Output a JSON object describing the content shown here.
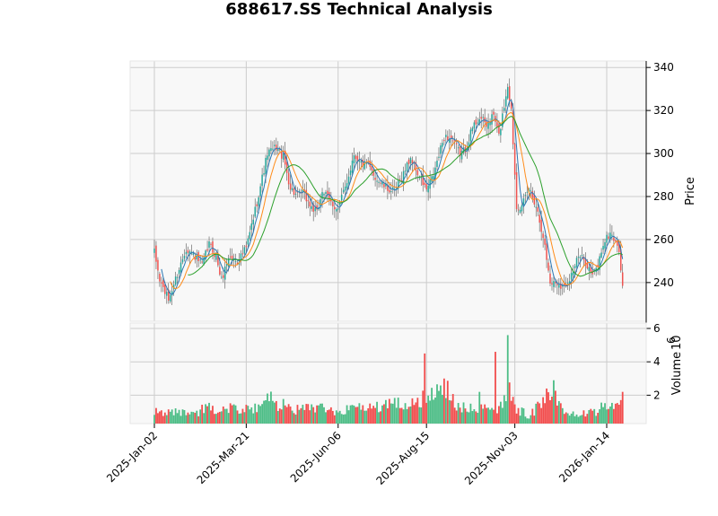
{
  "chart_data": {
    "title": "688617.SS Technical Analysis",
    "type": "candlestick",
    "price_axis": {
      "label": "Price",
      "ticks": [
        240,
        260,
        280,
        300,
        320,
        340
      ],
      "ylim": [
        222,
        343
      ]
    },
    "volume_axis": {
      "label": "Volume",
      "exponent_label": "10",
      "exponent": "6",
      "ticks": [
        2,
        4,
        6
      ],
      "ylim": [
        0.3,
        6.0
      ]
    },
    "x_ticks": [
      "2025-Jan-02",
      "2025-Mar-21",
      "2025-Jun-06",
      "2025-Aug-15",
      "2025-Nov-03",
      "2026-Jan-14"
    ],
    "x_tick_index": [
      0,
      52,
      104,
      154,
      204,
      256
    ],
    "n_bars": 266,
    "grid": true,
    "up_color": "#26a69a",
    "down_color": "#ef5350",
    "volume_up_color": "#4cbd86",
    "volume_down_color": "#f24d4d",
    "ma_fast_color": "#2a77b4",
    "ma_mid_color": "#ff8c1a",
    "ma_slow_color": "#2ca02c",
    "close_keypoints": [
      [
        0,
        254
      ],
      [
        3,
        241
      ],
      [
        8,
        232
      ],
      [
        13,
        244
      ],
      [
        18,
        256
      ],
      [
        22,
        253
      ],
      [
        27,
        248
      ],
      [
        31,
        258
      ],
      [
        35,
        252
      ],
      [
        38,
        241
      ],
      [
        42,
        252
      ],
      [
        47,
        250
      ],
      [
        52,
        256
      ],
      [
        56,
        270
      ],
      [
        60,
        285
      ],
      [
        64,
        300
      ],
      [
        69,
        303
      ],
      [
        73,
        298
      ],
      [
        77,
        284
      ],
      [
        81,
        280
      ],
      [
        84,
        282
      ],
      [
        88,
        276
      ],
      [
        92,
        272
      ],
      [
        95,
        283
      ],
      [
        99,
        278
      ],
      [
        104,
        274
      ],
      [
        110,
        290
      ],
      [
        113,
        300
      ],
      [
        116,
        296
      ],
      [
        121,
        294
      ],
      [
        126,
        288
      ],
      [
        131,
        284
      ],
      [
        136,
        282
      ],
      [
        141,
        291
      ],
      [
        145,
        298
      ],
      [
        150,
        289
      ],
      [
        154,
        283
      ],
      [
        158,
        290
      ],
      [
        164,
        308
      ],
      [
        168,
        307
      ],
      [
        173,
        300
      ],
      [
        176,
        302
      ],
      [
        180,
        312
      ],
      [
        184,
        317
      ],
      [
        188,
        313
      ],
      [
        192,
        318
      ],
      [
        195,
        308
      ],
      [
        200,
        332
      ],
      [
        202,
        320
      ],
      [
        205,
        276
      ],
      [
        208,
        275
      ],
      [
        212,
        284
      ],
      [
        216,
        276
      ],
      [
        220,
        262
      ],
      [
        224,
        240
      ],
      [
        228,
        240
      ],
      [
        232,
        238
      ],
      [
        236,
        244
      ],
      [
        240,
        252
      ],
      [
        244,
        250
      ],
      [
        248,
        243
      ],
      [
        251,
        248
      ],
      [
        254,
        258
      ],
      [
        258,
        263
      ],
      [
        262,
        258
      ],
      [
        264,
        247
      ],
      [
        265,
        239
      ]
    ],
    "volume_keypoints": [
      [
        0,
        1.1
      ],
      [
        10,
        1.0
      ],
      [
        20,
        0.9
      ],
      [
        30,
        1.2
      ],
      [
        40,
        1.3
      ],
      [
        52,
        1.1
      ],
      [
        60,
        1.2
      ],
      [
        64,
        2.1
      ],
      [
        70,
        1.5
      ],
      [
        80,
        1.1
      ],
      [
        95,
        1.2
      ],
      [
        105,
        1.1
      ],
      [
        120,
        1.2
      ],
      [
        135,
        1.4
      ],
      [
        150,
        1.6
      ],
      [
        158,
        2.2
      ],
      [
        165,
        2.4
      ],
      [
        170,
        1.5
      ],
      [
        180,
        1.2
      ],
      [
        190,
        1.1
      ],
      [
        197,
        1.3
      ],
      [
        201,
        2.5
      ],
      [
        205,
        1.2
      ],
      [
        212,
        0.8
      ],
      [
        220,
        1.5
      ],
      [
        226,
        2.3
      ],
      [
        232,
        1.0
      ],
      [
        240,
        1.0
      ],
      [
        248,
        0.9
      ],
      [
        256,
        1.4
      ],
      [
        262,
        1.3
      ],
      [
        265,
        2.1
      ]
    ],
    "volume_spikes": [
      [
        153,
        4.5
      ],
      [
        164,
        3.0
      ],
      [
        193,
        4.6
      ],
      [
        200,
        5.6
      ],
      [
        222,
        2.4
      ],
      [
        64,
        2.1
      ],
      [
        184,
        2.2
      ],
      [
        265,
        2.2
      ]
    ]
  }
}
